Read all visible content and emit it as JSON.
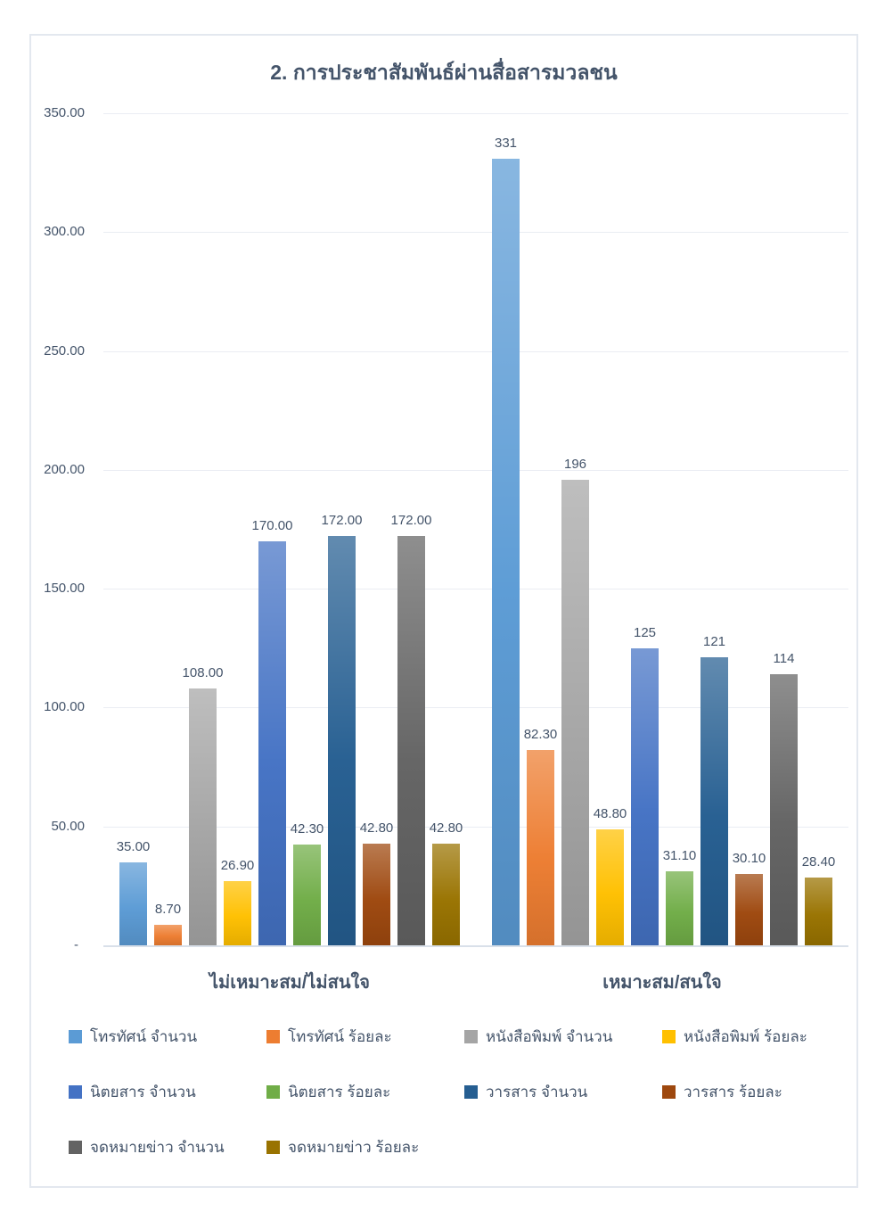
{
  "title": "2. การประชาสัมพันธ์ผ่านสื่อสารมวลชน",
  "text_color": "#44546A",
  "chart_data": {
    "type": "bar",
    "title": "2. การประชาสัมพันธ์ผ่านสื่อสารมวลชน",
    "categories": [
      "ไม่เหมาะสม/ไม่สนใจ",
      "เหมาะสม/สนใจ"
    ],
    "series": [
      {
        "name": "โทรทัศน์ จำนวน",
        "color": "#5B9BD5",
        "values": [
          35.0,
          331
        ],
        "labels": [
          "35.00",
          "331"
        ]
      },
      {
        "name": "โทรทัศน์ ร้อยละ",
        "color": "#ED7D31",
        "values": [
          8.7,
          82.3
        ],
        "labels": [
          "8.70",
          "82.30"
        ]
      },
      {
        "name": "หนังสือพิมพ์ จำนวน",
        "color": "#A5A5A5",
        "values": [
          108.0,
          196
        ],
        "labels": [
          "108.00",
          "196"
        ]
      },
      {
        "name": "หนังสือพิมพ์ ร้อยละ",
        "color": "#FFC000",
        "values": [
          26.9,
          48.8
        ],
        "labels": [
          "26.90",
          "48.80"
        ]
      },
      {
        "name": "นิตยสาร จำนวน",
        "color": "#4472C4",
        "values": [
          170.0,
          125
        ],
        "labels": [
          "170.00",
          "125"
        ]
      },
      {
        "name": "นิตยสาร ร้อยละ",
        "color": "#70AD47",
        "values": [
          42.3,
          31.1
        ],
        "labels": [
          "42.30",
          "31.10"
        ]
      },
      {
        "name": "วารสาร จำนวน",
        "color": "#255E91",
        "values": [
          172.0,
          121
        ],
        "labels": [
          "172.00",
          "121"
        ]
      },
      {
        "name": "วารสาร ร้อยละ",
        "color": "#9E480E",
        "values": [
          42.8,
          30.1
        ],
        "labels": [
          "42.80",
          "30.10"
        ]
      },
      {
        "name": "จดหมายข่าว จำนวน",
        "color": "#636363",
        "values": [
          172.0,
          114
        ],
        "labels": [
          "172.00",
          "114"
        ]
      },
      {
        "name": "จดหมายข่าว ร้อยละ",
        "color": "#997300",
        "values": [
          42.8,
          28.4
        ],
        "labels": [
          "42.80",
          "28.40"
        ]
      }
    ],
    "ylim": [
      0,
      350
    ],
    "yticks": [
      {
        "value": 0,
        "label": "-"
      },
      {
        "value": 50,
        "label": "50.00"
      },
      {
        "value": 100,
        "label": "100.00"
      },
      {
        "value": 150,
        "label": "150.00"
      },
      {
        "value": 200,
        "label": "200.00"
      },
      {
        "value": 250,
        "label": "250.00"
      },
      {
        "value": 300,
        "label": "300.00"
      },
      {
        "value": 350,
        "label": "350.00"
      }
    ],
    "grid": true,
    "legend_position": "bottom"
  }
}
